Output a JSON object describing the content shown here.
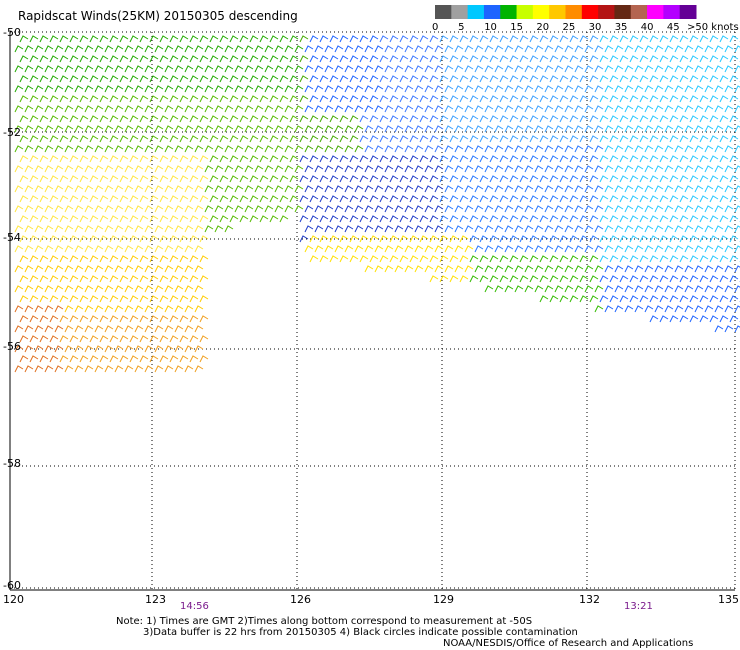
{
  "title": "Rapidscat Winds(25KM) 20150305 descending",
  "colorbar": {
    "labels": [
      "0",
      "5",
      "10",
      "15",
      "20",
      "25",
      "30",
      "35",
      "40",
      "45",
      ">50 knots"
    ],
    "colors": [
      "#555555",
      "#a0a0a0",
      "#00c8ff",
      "#1e64ff",
      "#00b400",
      "#c8ff00",
      "#ffff00",
      "#ffc800",
      "#ff8c00",
      "#ff0000",
      "#b41414",
      "#642814",
      "#b46450",
      "#ff00ff",
      "#b400ff",
      "#640096"
    ]
  },
  "map": {
    "lat_labels": [
      "-50",
      "-52",
      "-54",
      "-56",
      "-58",
      "-60"
    ],
    "lon_labels": [
      "120",
      "123",
      "126",
      "129",
      "132",
      "135"
    ],
    "time_labels": [
      "14:56",
      "13:21"
    ]
  },
  "notes": {
    "line1": "Note: 1) Times are GMT 2)Times along bottom correspond to measurement at -50S",
    "line2": "3)Data buffer is 22 hrs from 20150305 4) Black circles indicate possible contamination",
    "credit": "NOAA/NESDIS/Office of Research and Applications"
  }
}
